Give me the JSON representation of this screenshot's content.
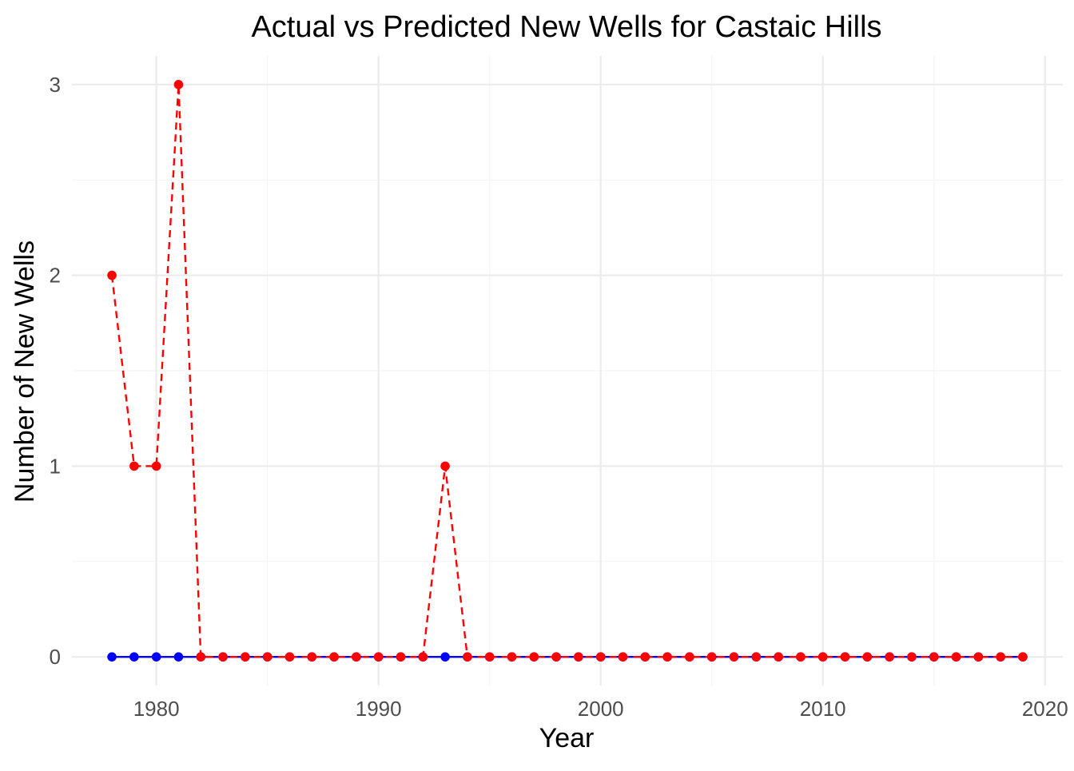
{
  "chart_data": {
    "type": "line",
    "title": "Actual vs Predicted New Wells for Castaic Hills",
    "xlabel": "Year",
    "ylabel": "Number of New Wells",
    "xlim": [
      1976.2,
      2020.8
    ],
    "ylim": [
      -0.15,
      3.15
    ],
    "x_ticks": [
      1980,
      1990,
      2000,
      2010,
      2020
    ],
    "y_ticks": [
      0,
      1,
      2,
      3
    ],
    "x_tick_labels": [
      "1980",
      "1990",
      "2000",
      "2010",
      "2020"
    ],
    "y_tick_labels": [
      "0",
      "1",
      "2",
      "3"
    ],
    "grid": true,
    "legend": "none",
    "x": [
      1978,
      1979,
      1980,
      1981,
      1982,
      1983,
      1984,
      1985,
      1986,
      1987,
      1988,
      1989,
      1990,
      1991,
      1992,
      1993,
      1994,
      1995,
      1996,
      1997,
      1998,
      1999,
      2000,
      2001,
      2002,
      2003,
      2004,
      2005,
      2006,
      2007,
      2008,
      2009,
      2010,
      2011,
      2012,
      2013,
      2014,
      2015,
      2016,
      2017,
      2018,
      2019
    ],
    "series": [
      {
        "color": "#0000ff",
        "line_style": "solid",
        "values": [
          0,
          0,
          0,
          0,
          0,
          0,
          0,
          0,
          0,
          0,
          0,
          0,
          0,
          0,
          0,
          0,
          0,
          0,
          0,
          0,
          0,
          0,
          0,
          0,
          0,
          0,
          0,
          0,
          0,
          0,
          0,
          0,
          0,
          0,
          0,
          0,
          0,
          0,
          0,
          0,
          0,
          0
        ]
      },
      {
        "color": "#ff0000",
        "line_style": "dashed",
        "values": [
          2,
          1,
          1,
          3,
          0,
          0,
          0,
          0,
          0,
          0,
          0,
          0,
          0,
          0,
          0,
          1,
          0,
          0,
          0,
          0,
          0,
          0,
          0,
          0,
          0,
          0,
          0,
          0,
          0,
          0,
          0,
          0,
          0,
          0,
          0,
          0,
          0,
          0,
          0,
          0,
          0,
          0
        ]
      }
    ],
    "colors": {
      "grid_major": "#ebebeb",
      "grid_minor": "#f4f4f4",
      "tick_text": "#4d4d4d"
    }
  }
}
